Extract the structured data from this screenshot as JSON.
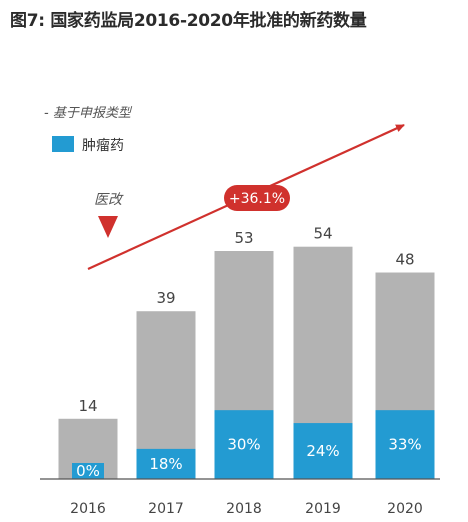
{
  "title": "图7: 国家药监局2016-2020年批准的新药数量",
  "chart_data": {
    "type": "bar",
    "title": "图7: 国家药监局2016-2020年批准的新药数量",
    "subtitle": "- 基于申报类型",
    "categories": [
      "2016",
      "2017",
      "2018",
      "2019",
      "2020"
    ],
    "series": [
      {
        "name": "",
        "values": [
          14,
          39,
          53,
          54,
          48
        ]
      },
      {
        "name": "肿瘤药",
        "values": [
          0,
          7,
          16,
          13,
          16
        ]
      }
    ],
    "oncology_share_labels": [
      "0%",
      "18%",
      "30%",
      "24%",
      "33%"
    ],
    "legend": {
      "position": "top-left",
      "entries": [
        "肿瘤药"
      ]
    },
    "annotations": {
      "reform_label": "医改",
      "growth_label": "+36.1%"
    },
    "ylim": [
      0,
      60
    ],
    "grid": false,
    "colors": {
      "total": "#b3b3b3",
      "oncology": "#239bd2",
      "arrow": "#d0312d",
      "baseline": "#555555"
    }
  }
}
